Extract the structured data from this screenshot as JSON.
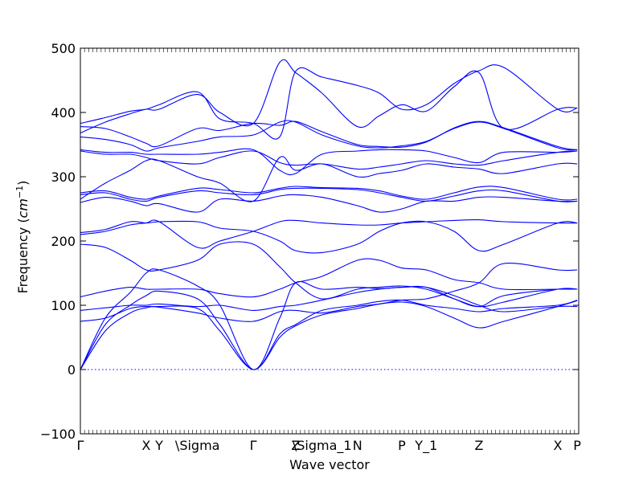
{
  "chart_data": {
    "type": "line",
    "xlabel": "Wave vector",
    "ylabel": "Frequency ($cm^{-1}$)",
    "ylabel_text": "Frequency (",
    "ylabel_math": "cm",
    "ylabel_exp": "−1",
    "ylabel_close": ")",
    "ylim": [
      -100,
      500
    ],
    "xlim": [
      0,
      1
    ],
    "yticks": [
      -100,
      0,
      100,
      200,
      300,
      400,
      500
    ],
    "high_symmetry_points": [
      {
        "label": "Γ",
        "x": 0.0
      },
      {
        "label": "X",
        "x": 0.132
      },
      {
        "label": "Y",
        "x": 0.158
      },
      {
        "label": "\\Sigma",
        "x": 0.235
      },
      {
        "label": "Γ",
        "x": 0.347
      },
      {
        "label": "Z",
        "x": 0.432
      },
      {
        "label": "\\Sigma_1",
        "x": 0.485
      },
      {
        "label": "N",
        "x": 0.556
      },
      {
        "label": "P",
        "x": 0.645
      },
      {
        "label": "Y_1",
        "x": 0.694
      },
      {
        "label": "Z",
        "x": 0.8
      },
      {
        "label": "X",
        "x": 0.958
      },
      {
        "label": "P",
        "x": 0.997
      }
    ],
    "zero_line": true,
    "grid": false,
    "series": [
      {
        "x": [
          0,
          0.05,
          0.1,
          0.132,
          0.158,
          0.235,
          0.28,
          0.347,
          0.4,
          0.432,
          0.485,
          0.556,
          0.6,
          0.645,
          0.694,
          0.75,
          0.8,
          0.85,
          0.958,
          0.997
        ],
        "y": [
          0,
          60,
          88,
          96,
          98,
          95,
          60,
          0,
          50,
          68,
          85,
          95,
          102,
          105,
          98,
          80,
          65,
          75,
          98,
          107
        ]
      },
      {
        "x": [
          0,
          0.05,
          0.1,
          0.132,
          0.158,
          0.235,
          0.28,
          0.347,
          0.4,
          0.432,
          0.485,
          0.556,
          0.6,
          0.645,
          0.694,
          0.75,
          0.8,
          0.85,
          0.958,
          0.997
        ],
        "y": [
          0,
          70,
          100,
          115,
          122,
          110,
          70,
          0,
          55,
          70,
          92,
          100,
          106,
          108,
          100,
          95,
          90,
          95,
          100,
          108
        ]
      },
      {
        "x": [
          0,
          0.05,
          0.1,
          0.132,
          0.158,
          0.235,
          0.28,
          0.347,
          0.4,
          0.432,
          0.485,
          0.556,
          0.6,
          0.645,
          0.694,
          0.75,
          0.8,
          0.85,
          0.958,
          0.997
        ],
        "y": [
          0,
          80,
          120,
          150,
          155,
          130,
          100,
          0,
          80,
          135,
          125,
          128,
          126,
          128,
          128,
          110,
          98,
          115,
          125,
          125
        ]
      },
      {
        "x": [
          0,
          0.05,
          0.1,
          0.132,
          0.158,
          0.235,
          0.28,
          0.347,
          0.4,
          0.432,
          0.485,
          0.556,
          0.6,
          0.645,
          0.694,
          0.75,
          0.8,
          0.85,
          0.958,
          0.997
        ],
        "y": [
          75,
          80,
          95,
          98,
          97,
          88,
          80,
          75,
          90,
          92,
          88,
          98,
          102,
          108,
          110,
          122,
          135,
          165,
          155,
          155
        ]
      },
      {
        "x": [
          0,
          0.05,
          0.1,
          0.132,
          0.158,
          0.235,
          0.28,
          0.347,
          0.4,
          0.432,
          0.485,
          0.556,
          0.6,
          0.645,
          0.694,
          0.75,
          0.8,
          0.85,
          0.958,
          0.997
        ],
        "y": [
          92,
          96,
          100,
          100,
          102,
          98,
          100,
          92,
          98,
          100,
          108,
          120,
          125,
          128,
          128,
          115,
          100,
          90,
          98,
          98
        ]
      },
      {
        "x": [
          0,
          0.05,
          0.1,
          0.132,
          0.158,
          0.235,
          0.28,
          0.347,
          0.4,
          0.432,
          0.485,
          0.556,
          0.6,
          0.645,
          0.694,
          0.75,
          0.8,
          0.85,
          0.958,
          0.997
        ],
        "y": [
          113,
          122,
          128,
          125,
          125,
          125,
          118,
          113,
          125,
          135,
          145,
          170,
          170,
          158,
          155,
          140,
          135,
          125,
          125,
          125
        ]
      },
      {
        "x": [
          0,
          0.05,
          0.1,
          0.132,
          0.158,
          0.235,
          0.28,
          0.347,
          0.4,
          0.432,
          0.485,
          0.556,
          0.6,
          0.645,
          0.694,
          0.75,
          0.8,
          0.85,
          0.958,
          0.997
        ],
        "y": [
          195,
          190,
          170,
          155,
          155,
          170,
          195,
          195,
          160,
          135,
          110,
          125,
          128,
          130,
          125,
          110,
          98,
          105,
          125,
          125
        ]
      },
      {
        "x": [
          0,
          0.05,
          0.1,
          0.132,
          0.158,
          0.235,
          0.28,
          0.347,
          0.4,
          0.432,
          0.485,
          0.556,
          0.6,
          0.645,
          0.694,
          0.75,
          0.8,
          0.85,
          0.958,
          0.997
        ],
        "y": [
          210,
          215,
          225,
          228,
          230,
          190,
          200,
          215,
          230,
          232,
          228,
          225,
          225,
          228,
          230,
          232,
          233,
          230,
          228,
          228
        ]
      },
      {
        "x": [
          0,
          0.05,
          0.1,
          0.132,
          0.158,
          0.235,
          0.28,
          0.347,
          0.4,
          0.432,
          0.485,
          0.556,
          0.6,
          0.645,
          0.694,
          0.75,
          0.8,
          0.85,
          0.958,
          0.997
        ],
        "y": [
          213,
          218,
          230,
          228,
          230,
          230,
          220,
          215,
          200,
          185,
          182,
          195,
          215,
          228,
          230,
          215,
          185,
          195,
          228,
          228
        ]
      },
      {
        "x": [
          0,
          0.05,
          0.1,
          0.132,
          0.158,
          0.235,
          0.28,
          0.347,
          0.4,
          0.432,
          0.485,
          0.556,
          0.6,
          0.645,
          0.694,
          0.75,
          0.8,
          0.85,
          0.958,
          0.997
        ],
        "y": [
          260,
          268,
          262,
          255,
          258,
          245,
          265,
          262,
          270,
          272,
          268,
          255,
          245,
          250,
          262,
          262,
          268,
          268,
          262,
          262
        ]
      },
      {
        "x": [
          0,
          0.05,
          0.1,
          0.132,
          0.158,
          0.235,
          0.28,
          0.347,
          0.4,
          0.432,
          0.485,
          0.556,
          0.6,
          0.645,
          0.694,
          0.75,
          0.8,
          0.85,
          0.958,
          0.997
        ],
        "y": [
          272,
          275,
          265,
          262,
          268,
          278,
          275,
          272,
          280,
          282,
          282,
          280,
          275,
          268,
          262,
          270,
          278,
          278,
          262,
          262
        ]
      },
      {
        "x": [
          0,
          0.05,
          0.1,
          0.132,
          0.158,
          0.235,
          0.28,
          0.347,
          0.4,
          0.432,
          0.485,
          0.556,
          0.6,
          0.645,
          0.694,
          0.75,
          0.8,
          0.85,
          0.958,
          0.997
        ],
        "y": [
          275,
          278,
          268,
          265,
          270,
          282,
          280,
          275,
          282,
          285,
          283,
          282,
          278,
          270,
          265,
          275,
          284,
          283,
          265,
          265
        ]
      },
      {
        "x": [
          0,
          0.05,
          0.1,
          0.132,
          0.158,
          0.235,
          0.28,
          0.347,
          0.4,
          0.432,
          0.485,
          0.556,
          0.6,
          0.645,
          0.694,
          0.75,
          0.8,
          0.85,
          0.958,
          0.997
        ],
        "y": [
          265,
          290,
          310,
          325,
          325,
          300,
          290,
          262,
          330,
          310,
          320,
          300,
          305,
          310,
          320,
          315,
          312,
          305,
          320,
          320
        ]
      },
      {
        "x": [
          0,
          0.05,
          0.1,
          0.132,
          0.158,
          0.235,
          0.28,
          0.347,
          0.4,
          0.432,
          0.485,
          0.556,
          0.6,
          0.645,
          0.694,
          0.75,
          0.8,
          0.85,
          0.958,
          0.997
        ],
        "y": [
          340,
          335,
          335,
          330,
          325,
          320,
          330,
          340,
          322,
          318,
          320,
          312,
          315,
          320,
          325,
          320,
          318,
          325,
          338,
          340
        ]
      },
      {
        "x": [
          0,
          0.05,
          0.1,
          0.132,
          0.158,
          0.235,
          0.28,
          0.347,
          0.4,
          0.432,
          0.485,
          0.556,
          0.6,
          0.645,
          0.694,
          0.75,
          0.8,
          0.85,
          0.958,
          0.997
        ],
        "y": [
          342,
          338,
          338,
          335,
          335,
          335,
          338,
          342,
          310,
          305,
          335,
          340,
          342,
          342,
          340,
          330,
          322,
          338,
          338,
          340
        ]
      },
      {
        "x": [
          0,
          0.05,
          0.1,
          0.132,
          0.158,
          0.235,
          0.28,
          0.347,
          0.4,
          0.432,
          0.485,
          0.556,
          0.6,
          0.645,
          0.694,
          0.75,
          0.8,
          0.85,
          0.958,
          0.997
        ],
        "y": [
          362,
          358,
          350,
          340,
          345,
          355,
          362,
          365,
          385,
          385,
          365,
          348,
          345,
          348,
          355,
          375,
          385,
          375,
          345,
          342
        ]
      },
      {
        "x": [
          0,
          0.05,
          0.1,
          0.132,
          0.158,
          0.235,
          0.28,
          0.347,
          0.4,
          0.432,
          0.485,
          0.556,
          0.6,
          0.645,
          0.694,
          0.75,
          0.8,
          0.85,
          0.958,
          0.997
        ],
        "y": [
          378,
          375,
          362,
          352,
          348,
          375,
          372,
          383,
          380,
          386,
          370,
          350,
          347,
          346,
          354,
          376,
          386,
          376,
          347,
          342
        ]
      },
      {
        "x": [
          0,
          0.05,
          0.1,
          0.132,
          0.158,
          0.235,
          0.28,
          0.347,
          0.4,
          0.432,
          0.485,
          0.556,
          0.6,
          0.645,
          0.694,
          0.75,
          0.8,
          0.85,
          0.958,
          0.997
        ],
        "y": [
          368,
          385,
          398,
          405,
          405,
          428,
          400,
          383,
          478,
          462,
          430,
          378,
          395,
          412,
          402,
          440,
          462,
          375,
          405,
          407
        ]
      },
      {
        "x": [
          0,
          0.05,
          0.1,
          0.132,
          0.158,
          0.235,
          0.28,
          0.347,
          0.4,
          0.432,
          0.485,
          0.556,
          0.6,
          0.645,
          0.694,
          0.75,
          0.8,
          0.85,
          0.958,
          0.997
        ],
        "y": [
          383,
          392,
          402,
          405,
          412,
          432,
          390,
          383,
          362,
          464,
          455,
          442,
          430,
          405,
          412,
          445,
          465,
          470,
          405,
          407
        ]
      }
    ]
  }
}
